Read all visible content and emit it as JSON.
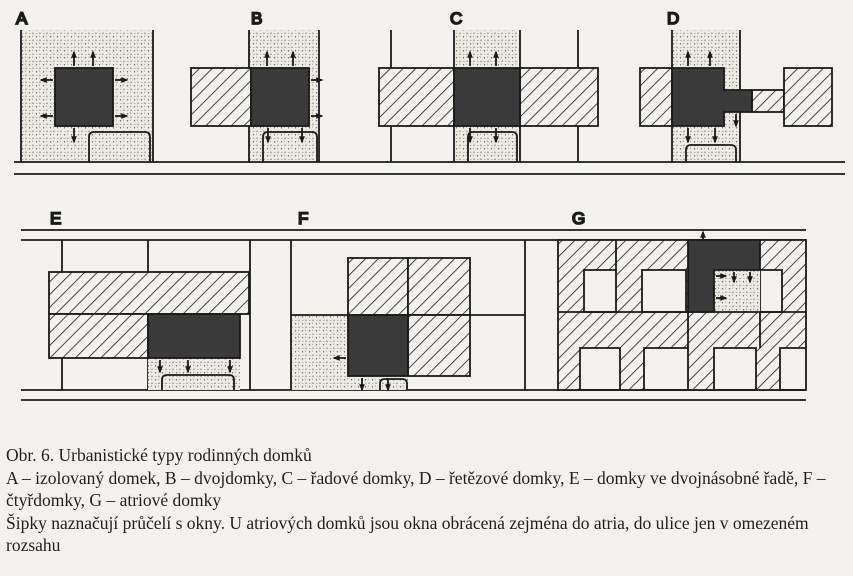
{
  "figure": {
    "panels": [
      {
        "id": "A",
        "label": "A"
      },
      {
        "id": "B",
        "label": "B"
      },
      {
        "id": "C",
        "label": "C"
      },
      {
        "id": "D",
        "label": "D"
      },
      {
        "id": "E",
        "label": "E"
      },
      {
        "id": "F",
        "label": "F"
      },
      {
        "id": "G",
        "label": "G"
      }
    ],
    "colors": {
      "ink": "#1a1a1a",
      "house_fill": "#3a3a3a",
      "background": "#f4f2ee",
      "stipple": "#555555"
    },
    "legend_icons": [
      "hatched-house-icon",
      "solid-house-icon",
      "stippled-garden-icon",
      "window-arrow-icon"
    ]
  },
  "caption": {
    "title": "Obr. 6. Urbanistické typy rodinných domků",
    "legend": "A – izolovaný domek, B – dvojdomky, C – řadové domky, D – řetězové domky, E – domky ve dvojnásobné řadě, F – čtyřdomky, G – atriové domky",
    "note": "Šipky naznačují průčelí s okny. U atriových domků jsou okna obrácená zejména do atria, do ulice jen v omezeném rozsahu"
  }
}
